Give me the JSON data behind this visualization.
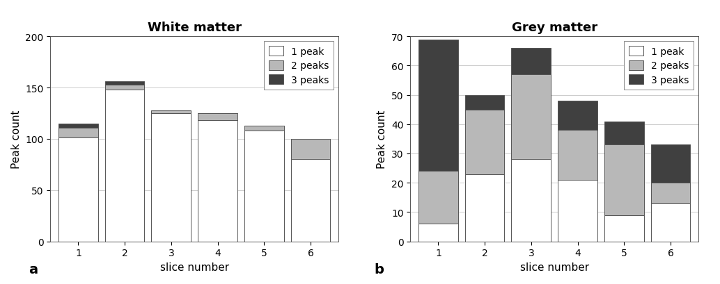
{
  "wm_title": "White matter",
  "gm_title": "Grey matter",
  "xlabel": "slice number",
  "ylabel": "Peak count",
  "label_a": "a",
  "label_b": "b",
  "slices": [
    1,
    2,
    3,
    4,
    5,
    6
  ],
  "wm_1peak": [
    101,
    148,
    125,
    118,
    108,
    80
  ],
  "wm_2peaks": [
    10,
    5,
    3,
    7,
    5,
    20
  ],
  "wm_3peaks": [
    4,
    3,
    0,
    0,
    0,
    0
  ],
  "wm_ylim": [
    0,
    200
  ],
  "wm_yticks": [
    0,
    50,
    100,
    150,
    200
  ],
  "gm_1peak": [
    6,
    23,
    28,
    21,
    9,
    13
  ],
  "gm_2peaks": [
    18,
    22,
    29,
    17,
    24,
    7
  ],
  "gm_3peaks": [
    45,
    5,
    9,
    10,
    8,
    13
  ],
  "gm_ylim": [
    0,
    70
  ],
  "gm_yticks": [
    0,
    10,
    20,
    30,
    40,
    50,
    60,
    70
  ],
  "color_1peak": "#ffffff",
  "color_2peaks": "#b8b8b8",
  "color_3peaks": "#404040",
  "edge_color": "#555555",
  "legend_labels": [
    "1 peak",
    "2 peaks",
    "3 peaks"
  ],
  "bar_width": 0.85,
  "title_fontsize": 13,
  "label_fontsize": 11,
  "tick_fontsize": 10,
  "legend_fontsize": 10,
  "ab_fontsize": 14,
  "grid_color": "#cccccc",
  "grid_linewidth": 0.7
}
